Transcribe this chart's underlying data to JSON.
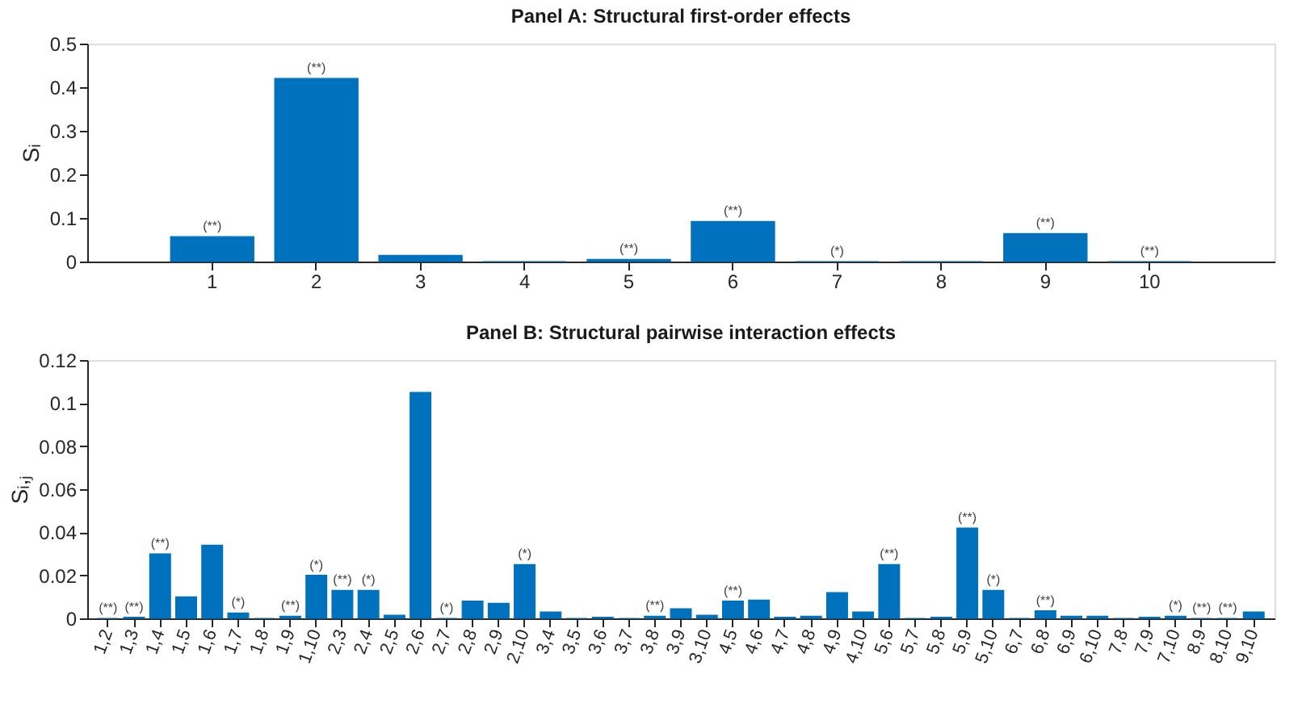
{
  "chart_data": [
    {
      "type": "bar",
      "title": "Panel A: Structural first-order effects",
      "ylabel": "Sᵢ",
      "color": "#0072bd",
      "categories": [
        "1",
        "2",
        "3",
        "4",
        "5",
        "6",
        "7",
        "8",
        "9",
        "10"
      ],
      "values": [
        0.057,
        0.42,
        0.014,
        0,
        0.005,
        0.092,
        0,
        0,
        0.064,
        0
      ],
      "ylim": [
        0,
        0.5
      ],
      "yticks": [
        0,
        0.1,
        0.2,
        0.3,
        0.4,
        0.5
      ],
      "grid": false,
      "annotations": [
        {
          "text": "(**)",
          "x": "1",
          "y": 0.057
        },
        {
          "text": "(**)",
          "x": "2",
          "y": 0.42
        },
        {
          "text": "(**)",
          "x": "5",
          "y": 0.005
        },
        {
          "text": "(**)",
          "x": "6",
          "y": 0.092
        },
        {
          "text": "(*)",
          "x": "7",
          "y": 0
        },
        {
          "text": "(**)",
          "x": "9",
          "y": 0.064
        },
        {
          "text": "(**)",
          "x": "10",
          "y": 0
        }
      ]
    },
    {
      "type": "bar",
      "title": "Panel B: Structural pairwise interaction effects",
      "ylabel": "Sᵢ,ⱼ",
      "color": "#0072bd",
      "categories": [
        "1,2",
        "1,3",
        "1,4",
        "1,5",
        "1,6",
        "1,7",
        "1,8",
        "1,9",
        "1,10",
        "2,3",
        "2,4",
        "2,5",
        "2,6",
        "2,7",
        "2,8",
        "2,9",
        "2,10",
        "3,4",
        "3,5",
        "3,6",
        "3,7",
        "3,8",
        "3,9",
        "3,10",
        "4,5",
        "4,6",
        "4,7",
        "4,8",
        "4,9",
        "4,10",
        "5,6",
        "5,7",
        "5,8",
        "5,9",
        "5,10",
        "6,7",
        "6,8",
        "6,9",
        "6,10",
        "7,8",
        "7,9",
        "7,10",
        "8,9",
        "8,10",
        "9,10"
      ],
      "values": [
        0,
        0.0005,
        0.03,
        0.01,
        0.034,
        0.0025,
        0,
        0.001,
        0.02,
        0.013,
        0.013,
        0.0015,
        0.105,
        0,
        0.008,
        0.007,
        0.025,
        0.003,
        0,
        0.0005,
        0,
        0.001,
        0.0045,
        0.0015,
        0.008,
        0.0085,
        0.0005,
        0.001,
        0.012,
        0.003,
        0.025,
        0,
        0.0005,
        0.042,
        0.013,
        0,
        0.0035,
        0.001,
        0.001,
        0,
        0.0005,
        0.001,
        0,
        0,
        0.003
      ],
      "ylim": [
        0,
        0.12
      ],
      "yticks": [
        0,
        0.02,
        0.04,
        0.06,
        0.08,
        0.1,
        0.12
      ],
      "grid": false,
      "annotations": [
        {
          "text": "(**)",
          "x": "1,2",
          "y": 0
        },
        {
          "text": "(**)",
          "x": "1,3",
          "y": 0.0005
        },
        {
          "text": "(**)",
          "x": "1,4",
          "y": 0.03
        },
        {
          "text": "(*)",
          "x": "1,7",
          "y": 0.0025
        },
        {
          "text": "(**)",
          "x": "1,9",
          "y": 0.001
        },
        {
          "text": "(*)",
          "x": "1,10",
          "y": 0.02
        },
        {
          "text": "(**)",
          "x": "2,3",
          "y": 0.013
        },
        {
          "text": "(*)",
          "x": "2,4",
          "y": 0.013
        },
        {
          "text": "(*)",
          "x": "2,7",
          "y": 0
        },
        {
          "text": "(*)",
          "x": "2,10",
          "y": 0.025
        },
        {
          "text": "(**)",
          "x": "3,8",
          "y": 0.001
        },
        {
          "text": "(**)",
          "x": "4,5",
          "y": 0.008
        },
        {
          "text": "(**)",
          "x": "5,6",
          "y": 0.025
        },
        {
          "text": "(**)",
          "x": "5,9",
          "y": 0.042
        },
        {
          "text": "(*)",
          "x": "5,10",
          "y": 0.013
        },
        {
          "text": "(**)",
          "x": "6,8",
          "y": 0.0035
        },
        {
          "text": "(*)",
          "x": "7,10",
          "y": 0.001
        },
        {
          "text": "(**)",
          "x": "8,9",
          "y": 0
        },
        {
          "text": "(**)",
          "x": "8,10",
          "y": 0
        }
      ]
    }
  ]
}
